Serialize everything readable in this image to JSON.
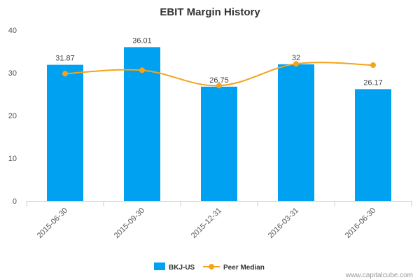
{
  "chart_data": {
    "type": "bar",
    "title": "EBIT Margin History",
    "categories": [
      "2015-06-30",
      "2015-09-30",
      "2015-12-31",
      "2016-03-31",
      "2016-06-30"
    ],
    "series": [
      {
        "name": "BKJ-US",
        "type": "bar",
        "color": "#00a1f1",
        "values": [
          31.87,
          36.01,
          26.75,
          32,
          26.17
        ],
        "labels": [
          "31.87",
          "36.01",
          "26.75",
          "32",
          "26.17"
        ]
      },
      {
        "name": "Peer Median",
        "type": "line",
        "color": "#f5a31a",
        "values": [
          29.8,
          30.6,
          27.0,
          32.1,
          31.8
        ]
      }
    ],
    "ylim": [
      0,
      40
    ],
    "yticks": [
      0,
      10,
      20,
      30,
      40
    ],
    "grid": false,
    "legend_position": "bottom-center",
    "credit": "www.capitalcube.com"
  }
}
